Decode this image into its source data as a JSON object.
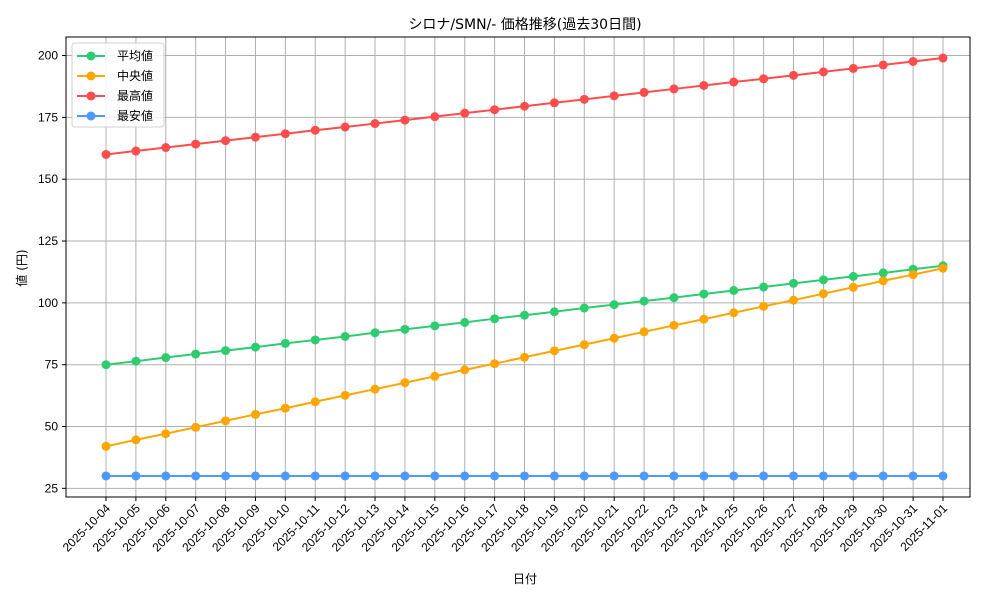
{
  "chart_data": {
    "type": "line",
    "title": "シロナ/SMN/- 価格推移(過去30日間)",
    "xlabel": "日付",
    "ylabel": "値 (円)",
    "ylim": [
      21.5,
      207.5
    ],
    "yticks": [
      25,
      50,
      75,
      100,
      125,
      150,
      175,
      200
    ],
    "grid": true,
    "legend_position": "upper left",
    "categories": [
      "2025-10-04",
      "2025-10-05",
      "2025-10-06",
      "2025-10-07",
      "2025-10-08",
      "2025-10-09",
      "2025-10-10",
      "2025-10-11",
      "2025-10-12",
      "2025-10-13",
      "2025-10-14",
      "2025-10-15",
      "2025-10-16",
      "2025-10-17",
      "2025-10-18",
      "2025-10-19",
      "2025-10-20",
      "2025-10-21",
      "2025-10-22",
      "2025-10-23",
      "2025-10-24",
      "2025-10-25",
      "2025-10-26",
      "2025-10-27",
      "2025-10-28",
      "2025-10-29",
      "2025-10-30",
      "2025-10-31",
      "2025-11-01"
    ],
    "series": [
      {
        "name": "平均値",
        "color": "#2ecc71",
        "values": [
          75.0,
          76.4,
          77.9,
          79.3,
          80.7,
          82.1,
          83.6,
          85.0,
          86.4,
          87.9,
          89.3,
          90.7,
          92.1,
          93.6,
          95.0,
          96.4,
          97.9,
          99.3,
          100.7,
          102.1,
          103.6,
          105.0,
          106.4,
          107.9,
          109.3,
          110.7,
          112.1,
          113.6,
          115.0
        ]
      },
      {
        "name": "中央値",
        "color": "#ffa500",
        "values": [
          42.0,
          44.6,
          47.1,
          49.7,
          52.3,
          54.9,
          57.4,
          60.0,
          62.6,
          65.1,
          67.7,
          70.3,
          72.9,
          75.4,
          78.0,
          80.6,
          83.1,
          85.7,
          88.3,
          90.9,
          93.4,
          96.0,
          98.6,
          101.1,
          103.7,
          106.3,
          108.9,
          111.4,
          114.0
        ]
      },
      {
        "name": "最高値",
        "color": "#ff4c4c",
        "values": [
          160.0,
          161.4,
          162.8,
          164.2,
          165.6,
          167.0,
          168.4,
          169.8,
          171.1,
          172.5,
          173.9,
          175.3,
          176.7,
          178.1,
          179.5,
          180.9,
          182.3,
          183.7,
          185.1,
          186.5,
          187.9,
          189.3,
          190.6,
          192.0,
          193.4,
          194.8,
          196.2,
          197.6,
          199.0
        ]
      },
      {
        "name": "最安値",
        "color": "#4c9aff",
        "values": [
          30,
          30,
          30,
          30,
          30,
          30,
          30,
          30,
          30,
          30,
          30,
          30,
          30,
          30,
          30,
          30,
          30,
          30,
          30,
          30,
          30,
          30,
          30,
          30,
          30,
          30,
          30,
          30,
          30
        ]
      }
    ]
  }
}
